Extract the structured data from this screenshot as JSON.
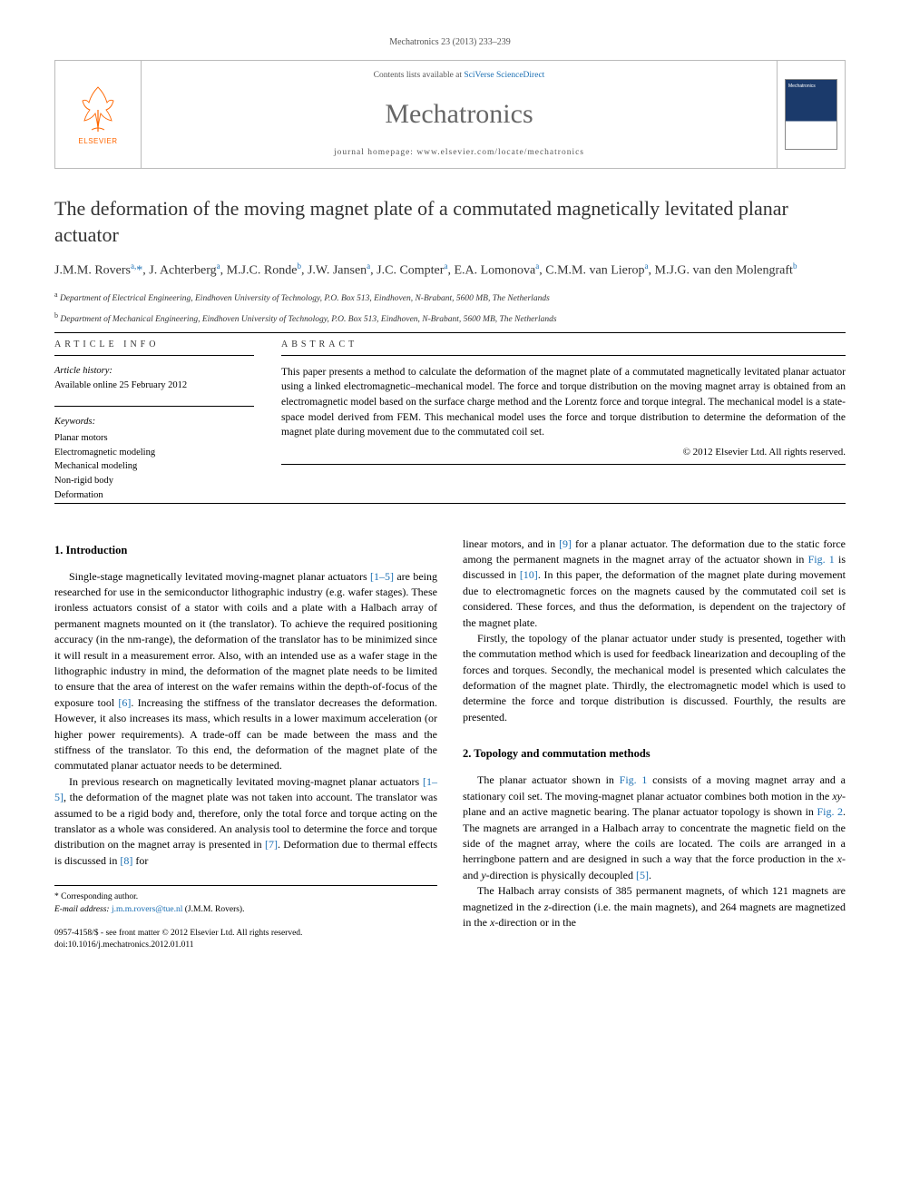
{
  "journal_ref": "Mechatronics 23 (2013) 233–239",
  "header": {
    "contents_prefix": "Contents lists available at ",
    "contents_link": "SciVerse ScienceDirect",
    "journal_name": "Mechatronics",
    "homepage_prefix": "journal homepage: ",
    "homepage_url": "www.elsevier.com/locate/mechatronics",
    "logo_label": "ELSEVIER"
  },
  "title": "The deformation of the moving magnet plate of a commutated magnetically levitated planar actuator",
  "authors_html": "J.M.M. Rovers<sup>a,</sup><span class='asterisk'>*</span>, J. Achterberg<sup>a</sup>, M.J.C. Ronde<sup>b</sup>, J.W. Jansen<sup>a</sup>, J.C. Compter<sup>a</sup>, E.A. Lomonova<sup>a</sup>, C.M.M. van Lierop<sup>a</sup>, M.J.G. van den Molengraft<sup>b</sup>",
  "affiliations": [
    {
      "sup": "a",
      "text": "Department of Electrical Engineering, Eindhoven University of Technology, P.O. Box 513, Eindhoven, N-Brabant, 5600 MB, The Netherlands"
    },
    {
      "sup": "b",
      "text": "Department of Mechanical Engineering, Eindhoven University of Technology, P.O. Box 513, Eindhoven, N-Brabant, 5600 MB, The Netherlands"
    }
  ],
  "article_info": {
    "heading": "ARTICLE INFO",
    "history_label": "Article history:",
    "history_text": "Available online 25 February 2012",
    "keywords_label": "Keywords:",
    "keywords": [
      "Planar motors",
      "Electromagnetic modeling",
      "Mechanical modeling",
      "Non-rigid body",
      "Deformation"
    ]
  },
  "abstract": {
    "heading": "ABSTRACT",
    "text": "This paper presents a method to calculate the deformation of the magnet plate of a commutated magnetically levitated planar actuator using a linked electromagnetic–mechanical model. The force and torque distribution on the moving magnet array is obtained from an electromagnetic model based on the surface charge method and the Lorentz force and torque integral. The mechanical model is a state-space model derived from FEM. This mechanical model uses the force and torque distribution to determine the deformation of the magnet plate during movement due to the commutated coil set.",
    "copyright": "© 2012 Elsevier Ltd. All rights reserved."
  },
  "sections": {
    "intro_heading": "1. Introduction",
    "intro_p1": "Single-stage magnetically levitated moving-magnet planar actuators [1–5] are being researched for use in the semiconductor lithographic industry (e.g. wafer stages). These ironless actuators consist of a stator with coils and a plate with a Halbach array of permanent magnets mounted on it (the translator). To achieve the required positioning accuracy (in the nm-range), the deformation of the translator has to be minimized since it will result in a measurement error. Also, with an intended use as a wafer stage in the lithographic industry in mind, the deformation of the magnet plate needs to be limited to ensure that the area of interest on the wafer remains within the depth-of-focus of the exposure tool [6]. Increasing the stiffness of the translator decreases the deformation. However, it also increases its mass, which results in a lower maximum acceleration (or higher power requirements). A trade-off can be made between the mass and the stiffness of the translator. To this end, the deformation of the magnet plate of the commutated planar actuator needs to be determined.",
    "intro_p2": "In previous research on magnetically levitated moving-magnet planar actuators [1–5], the deformation of the magnet plate was not taken into account. The translator was assumed to be a rigid body and, therefore, only the total force and torque acting on the translator as a whole was considered. An analysis tool to determine the force and torque distribution on the magnet array is presented in [7]. Deformation due to thermal effects is discussed in [8] for",
    "intro_p3": "linear motors, and in [9] for a planar actuator. The deformation due to the static force among the permanent magnets in the magnet array of the actuator shown in Fig. 1 is discussed in [10]. In this paper, the deformation of the magnet plate during movement due to electromagnetic forces on the magnets caused by the commutated coil set is considered. These forces, and thus the deformation, is dependent on the trajectory of the magnet plate.",
    "intro_p4": "Firstly, the topology of the planar actuator under study is presented, together with the commutation method which is used for feedback linearization and decoupling of the forces and torques. Secondly, the mechanical model is presented which calculates the deformation of the magnet plate. Thirdly, the electromagnetic model which is used to determine the force and torque distribution is discussed. Fourthly, the results are presented.",
    "topology_heading": "2. Topology and commutation methods",
    "topology_p1": "The planar actuator shown in Fig. 1 consists of a moving magnet array and a stationary coil set. The moving-magnet planar actuator combines both motion in the xy-plane and an active magnetic bearing. The planar actuator topology is shown in Fig. 2. The magnets are arranged in a Halbach array to concentrate the magnetic field on the side of the magnet array, where the coils are located. The coils are arranged in a herringbone pattern and are designed in such a way that the force production in the x- and y-direction is physically decoupled [5].",
    "topology_p2": "The Halbach array consists of 385 permanent magnets, of which 121 magnets are magnetized in the z-direction (i.e. the main magnets), and 264 magnets are magnetized in the x-direction or in the"
  },
  "footer": {
    "corr_label": "* Corresponding author.",
    "email_label": "E-mail address:",
    "email": "j.m.m.rovers@tue.nl",
    "email_suffix": "(J.M.M. Rovers).",
    "copyright_line": "0957-4158/$ - see front matter © 2012 Elsevier Ltd. All rights reserved.",
    "doi": "doi:10.1016/j.mechatronics.2012.01.011"
  },
  "colors": {
    "link": "#1b6fb3",
    "logo_orange": "#ff6600",
    "journal_gray": "#666666"
  }
}
